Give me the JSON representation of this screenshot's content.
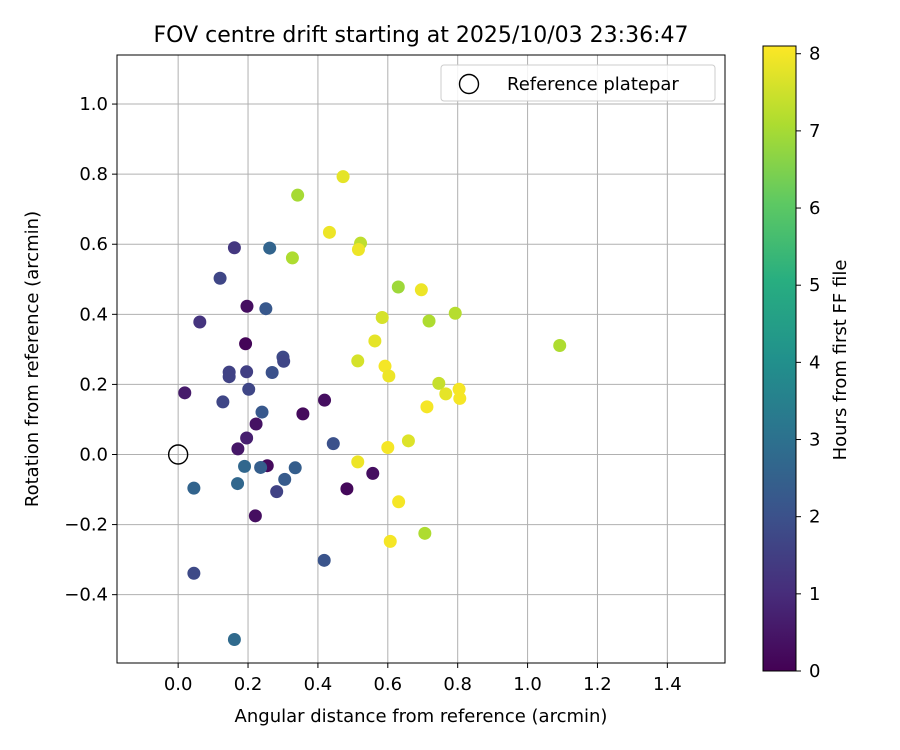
{
  "chart_data": {
    "type": "scatter",
    "title": "FOV centre drift starting at 2025/10/03 23:36:47",
    "xlabel": "Angular distance from reference (arcmin)",
    "ylabel": "Rotation from reference (arcmin)",
    "xlim": [
      -0.175,
      1.565
    ],
    "ylim": [
      -0.595,
      1.14
    ],
    "xticks": [
      0.0,
      0.2,
      0.4,
      0.6,
      0.8,
      1.0,
      1.2,
      1.4
    ],
    "xtick_labels": [
      "0.0",
      "0.2",
      "0.4",
      "0.6",
      "0.8",
      "1.0",
      "1.2",
      "1.4"
    ],
    "yticks": [
      -0.4,
      -0.2,
      0.0,
      0.2,
      0.4,
      0.6,
      0.8,
      1.0
    ],
    "ytick_labels": [
      "−0.4",
      "−0.2",
      "0.0",
      "0.2",
      "0.4",
      "0.6",
      "0.8",
      "1.0"
    ],
    "grid": true,
    "legend": {
      "location": "top-right",
      "entries": [
        "Reference platepar"
      ]
    },
    "reference_point": {
      "x": 0.0,
      "y": 0.0
    },
    "colorbar": {
      "label": "Hours from first FF file",
      "range": [
        0,
        8.1
      ],
      "ticks": [
        0,
        1,
        2,
        3,
        4,
        5,
        6,
        7,
        8
      ],
      "tick_labels": [
        "0",
        "1",
        "2",
        "3",
        "4",
        "5",
        "6",
        "7",
        "8"
      ],
      "colormap": "viridis"
    },
    "points": [
      {
        "x": 0.019,
        "y": 0.176,
        "hours": 0.6
      },
      {
        "x": 0.193,
        "y": 0.316,
        "hours": 0.1
      },
      {
        "x": 0.197,
        "y": 0.423,
        "hours": 0.3
      },
      {
        "x": 0.223,
        "y": 0.087,
        "hours": 0.4
      },
      {
        "x": 0.171,
        "y": 0.016,
        "hours": 0.5
      },
      {
        "x": 0.255,
        "y": -0.032,
        "hours": 0.2
      },
      {
        "x": 0.221,
        "y": -0.175,
        "hours": 0.3
      },
      {
        "x": 0.357,
        "y": 0.116,
        "hours": 0.2
      },
      {
        "x": 0.419,
        "y": 0.155,
        "hours": 0.3
      },
      {
        "x": 0.483,
        "y": -0.098,
        "hours": 0.15
      },
      {
        "x": 0.557,
        "y": -0.054,
        "hours": 0.3
      },
      {
        "x": 0.196,
        "y": 0.047,
        "hours": 0.7
      },
      {
        "x": 0.062,
        "y": 0.378,
        "hours": 1.2
      },
      {
        "x": 0.161,
        "y": 0.59,
        "hours": 1.3
      },
      {
        "x": 0.12,
        "y": 0.503,
        "hours": 1.7
      },
      {
        "x": 0.146,
        "y": 0.235,
        "hours": 1.6
      },
      {
        "x": 0.146,
        "y": 0.222,
        "hours": 1.6
      },
      {
        "x": 0.196,
        "y": 0.236,
        "hours": 1.5
      },
      {
        "x": 0.202,
        "y": 0.186,
        "hours": 1.7
      },
      {
        "x": 0.128,
        "y": 0.15,
        "hours": 1.7
      },
      {
        "x": 0.045,
        "y": -0.339,
        "hours": 1.8
      },
      {
        "x": 0.3,
        "y": 0.278,
        "hours": 1.8
      },
      {
        "x": 0.302,
        "y": 0.266,
        "hours": 1.7
      },
      {
        "x": 0.269,
        "y": 0.234,
        "hours": 2.0
      },
      {
        "x": 0.251,
        "y": 0.416,
        "hours": 2.2
      },
      {
        "x": 0.24,
        "y": 0.121,
        "hours": 2.2
      },
      {
        "x": 0.282,
        "y": -0.106,
        "hours": 1.6
      },
      {
        "x": 0.444,
        "y": 0.031,
        "hours": 2.0
      },
      {
        "x": 0.418,
        "y": -0.302,
        "hours": 2.1
      },
      {
        "x": 0.305,
        "y": -0.071,
        "hours": 2.3
      },
      {
        "x": 0.335,
        "y": -0.038,
        "hours": 2.4
      },
      {
        "x": 0.236,
        "y": -0.037,
        "hours": 2.4
      },
      {
        "x": 0.262,
        "y": 0.589,
        "hours": 2.6
      },
      {
        "x": 0.19,
        "y": -0.034,
        "hours": 2.7
      },
      {
        "x": 0.17,
        "y": -0.083,
        "hours": 2.7
      },
      {
        "x": 0.045,
        "y": -0.096,
        "hours": 2.6
      },
      {
        "x": 0.161,
        "y": -0.528,
        "hours": 2.8
      },
      {
        "x": 0.342,
        "y": 0.74,
        "hours": 7.0
      },
      {
        "x": 0.327,
        "y": 0.561,
        "hours": 7.1
      },
      {
        "x": 0.472,
        "y": 0.793,
        "hours": 7.8
      },
      {
        "x": 0.433,
        "y": 0.634,
        "hours": 7.9
      },
      {
        "x": 0.522,
        "y": 0.603,
        "hours": 7.3
      },
      {
        "x": 0.516,
        "y": 0.585,
        "hours": 7.9
      },
      {
        "x": 0.584,
        "y": 0.391,
        "hours": 7.6
      },
      {
        "x": 0.63,
        "y": 0.478,
        "hours": 6.9
      },
      {
        "x": 0.696,
        "y": 0.47,
        "hours": 7.9
      },
      {
        "x": 0.718,
        "y": 0.381,
        "hours": 7.1
      },
      {
        "x": 0.793,
        "y": 0.403,
        "hours": 7.2
      },
      {
        "x": 0.563,
        "y": 0.324,
        "hours": 7.8
      },
      {
        "x": 0.514,
        "y": 0.267,
        "hours": 7.6
      },
      {
        "x": 0.592,
        "y": 0.252,
        "hours": 8.0
      },
      {
        "x": 0.603,
        "y": 0.224,
        "hours": 7.9
      },
      {
        "x": 0.746,
        "y": 0.203,
        "hours": 7.4
      },
      {
        "x": 0.766,
        "y": 0.173,
        "hours": 7.8
      },
      {
        "x": 0.804,
        "y": 0.186,
        "hours": 8.0
      },
      {
        "x": 0.806,
        "y": 0.16,
        "hours": 8.0
      },
      {
        "x": 0.712,
        "y": 0.136,
        "hours": 8.0
      },
      {
        "x": 1.092,
        "y": 0.311,
        "hours": 7.1
      },
      {
        "x": 0.659,
        "y": 0.039,
        "hours": 7.7
      },
      {
        "x": 0.6,
        "y": 0.02,
        "hours": 8.0
      },
      {
        "x": 0.514,
        "y": -0.021,
        "hours": 7.9
      },
      {
        "x": 0.631,
        "y": -0.135,
        "hours": 8.0
      },
      {
        "x": 0.607,
        "y": -0.248,
        "hours": 8.0
      },
      {
        "x": 0.706,
        "y": -0.225,
        "hours": 7.1
      }
    ]
  }
}
